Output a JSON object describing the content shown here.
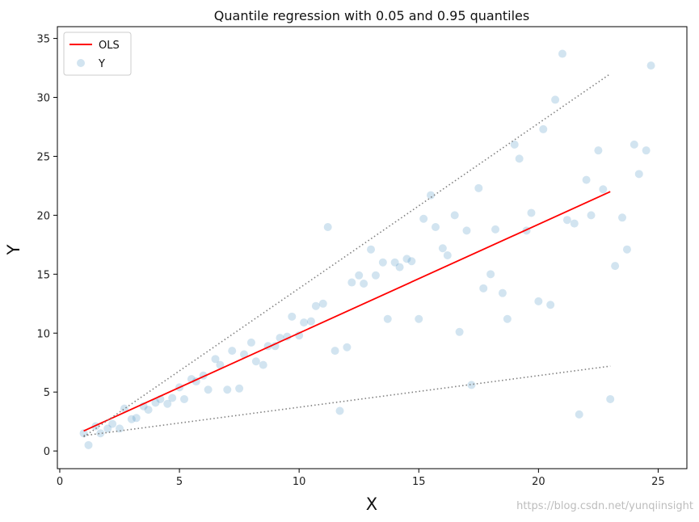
{
  "chart_data": {
    "type": "scatter",
    "title": "Quantile regression with 0.05 and 0.95 quantiles",
    "xlabel": "X",
    "ylabel": "Y",
    "xlim": [
      -0.1,
      26.2
    ],
    "ylim": [
      -1.5,
      36.0
    ],
    "xticks": [
      0,
      5,
      10,
      15,
      20,
      25
    ],
    "yticks": [
      0,
      5,
      10,
      15,
      20,
      25,
      30,
      35
    ],
    "grid": false,
    "legend": {
      "placement": "top-left",
      "entries": [
        "OLS",
        "Y"
      ]
    },
    "series": [
      {
        "name": "OLS",
        "kind": "line",
        "color": "#ff0000",
        "x": [
          1,
          23
        ],
        "y": [
          1.7,
          22.0
        ]
      },
      {
        "kind": "line",
        "style": "dotted",
        "color": "#808080",
        "x": [
          1,
          23
        ],
        "y": [
          1.2,
          32.0
        ]
      },
      {
        "kind": "line",
        "style": "dotted",
        "color": "#808080",
        "x": [
          1,
          23
        ],
        "y": [
          1.3,
          7.2
        ]
      },
      {
        "name": "Y",
        "kind": "scatter",
        "color": "#1f77b4",
        "opacity": 0.2,
        "points": [
          [
            1.0,
            1.5
          ],
          [
            1.2,
            0.5
          ],
          [
            1.5,
            2.1
          ],
          [
            1.7,
            1.5
          ],
          [
            2.0,
            1.9
          ],
          [
            2.2,
            2.3
          ],
          [
            2.5,
            1.9
          ],
          [
            2.7,
            3.6
          ],
          [
            3.0,
            2.7
          ],
          [
            3.2,
            2.8
          ],
          [
            3.5,
            3.8
          ],
          [
            3.7,
            3.5
          ],
          [
            4.0,
            4.1
          ],
          [
            4.2,
            4.4
          ],
          [
            4.5,
            4.0
          ],
          [
            4.7,
            4.5
          ],
          [
            5.0,
            5.4
          ],
          [
            5.2,
            4.4
          ],
          [
            5.5,
            6.1
          ],
          [
            5.7,
            5.9
          ],
          [
            6.0,
            6.4
          ],
          [
            6.2,
            5.2
          ],
          [
            6.5,
            7.8
          ],
          [
            6.7,
            7.3
          ],
          [
            7.0,
            5.2
          ],
          [
            7.2,
            8.5
          ],
          [
            7.5,
            5.3
          ],
          [
            7.7,
            8.2
          ],
          [
            8.0,
            9.2
          ],
          [
            8.2,
            7.6
          ],
          [
            8.5,
            7.3
          ],
          [
            8.7,
            8.9
          ],
          [
            9.0,
            8.9
          ],
          [
            9.2,
            9.6
          ],
          [
            9.5,
            9.7
          ],
          [
            9.7,
            11.4
          ],
          [
            10.0,
            9.8
          ],
          [
            10.2,
            10.9
          ],
          [
            10.5,
            11.0
          ],
          [
            10.7,
            12.3
          ],
          [
            11.0,
            12.5
          ],
          [
            11.2,
            19.0
          ],
          [
            11.5,
            8.5
          ],
          [
            11.7,
            3.4
          ],
          [
            12.0,
            8.8
          ],
          [
            12.2,
            14.3
          ],
          [
            12.5,
            14.9
          ],
          [
            12.7,
            14.2
          ],
          [
            13.0,
            17.1
          ],
          [
            13.2,
            14.9
          ],
          [
            13.5,
            16.0
          ],
          [
            13.7,
            11.2
          ],
          [
            14.0,
            16.0
          ],
          [
            14.2,
            15.6
          ],
          [
            14.5,
            16.3
          ],
          [
            14.7,
            16.1
          ],
          [
            15.0,
            11.2
          ],
          [
            15.2,
            19.7
          ],
          [
            15.5,
            21.7
          ],
          [
            15.7,
            19.0
          ],
          [
            16.0,
            17.2
          ],
          [
            16.2,
            16.6
          ],
          [
            16.5,
            20.0
          ],
          [
            16.7,
            10.1
          ],
          [
            17.0,
            18.7
          ],
          [
            17.2,
            5.6
          ],
          [
            17.5,
            22.3
          ],
          [
            17.7,
            13.8
          ],
          [
            18.0,
            15.0
          ],
          [
            18.2,
            18.8
          ],
          [
            18.5,
            13.4
          ],
          [
            18.7,
            11.2
          ],
          [
            19.0,
            26.0
          ],
          [
            19.2,
            24.8
          ],
          [
            19.5,
            18.7
          ],
          [
            19.7,
            20.2
          ],
          [
            20.0,
            12.7
          ],
          [
            20.2,
            27.3
          ],
          [
            20.5,
            12.4
          ],
          [
            20.7,
            29.8
          ],
          [
            21.0,
            33.7
          ],
          [
            21.2,
            19.6
          ],
          [
            21.5,
            19.3
          ],
          [
            21.7,
            3.1
          ],
          [
            22.0,
            23.0
          ],
          [
            22.2,
            20.0
          ],
          [
            22.5,
            25.5
          ],
          [
            22.7,
            22.2
          ],
          [
            23.0,
            4.4
          ],
          [
            23.2,
            15.7
          ],
          [
            23.5,
            19.8
          ],
          [
            23.7,
            17.1
          ],
          [
            24.0,
            26.0
          ],
          [
            24.2,
            23.5
          ],
          [
            24.5,
            25.5
          ],
          [
            24.7,
            32.7
          ]
        ]
      }
    ]
  },
  "watermark": "https://blog.csdn.net/yunqiinsight"
}
